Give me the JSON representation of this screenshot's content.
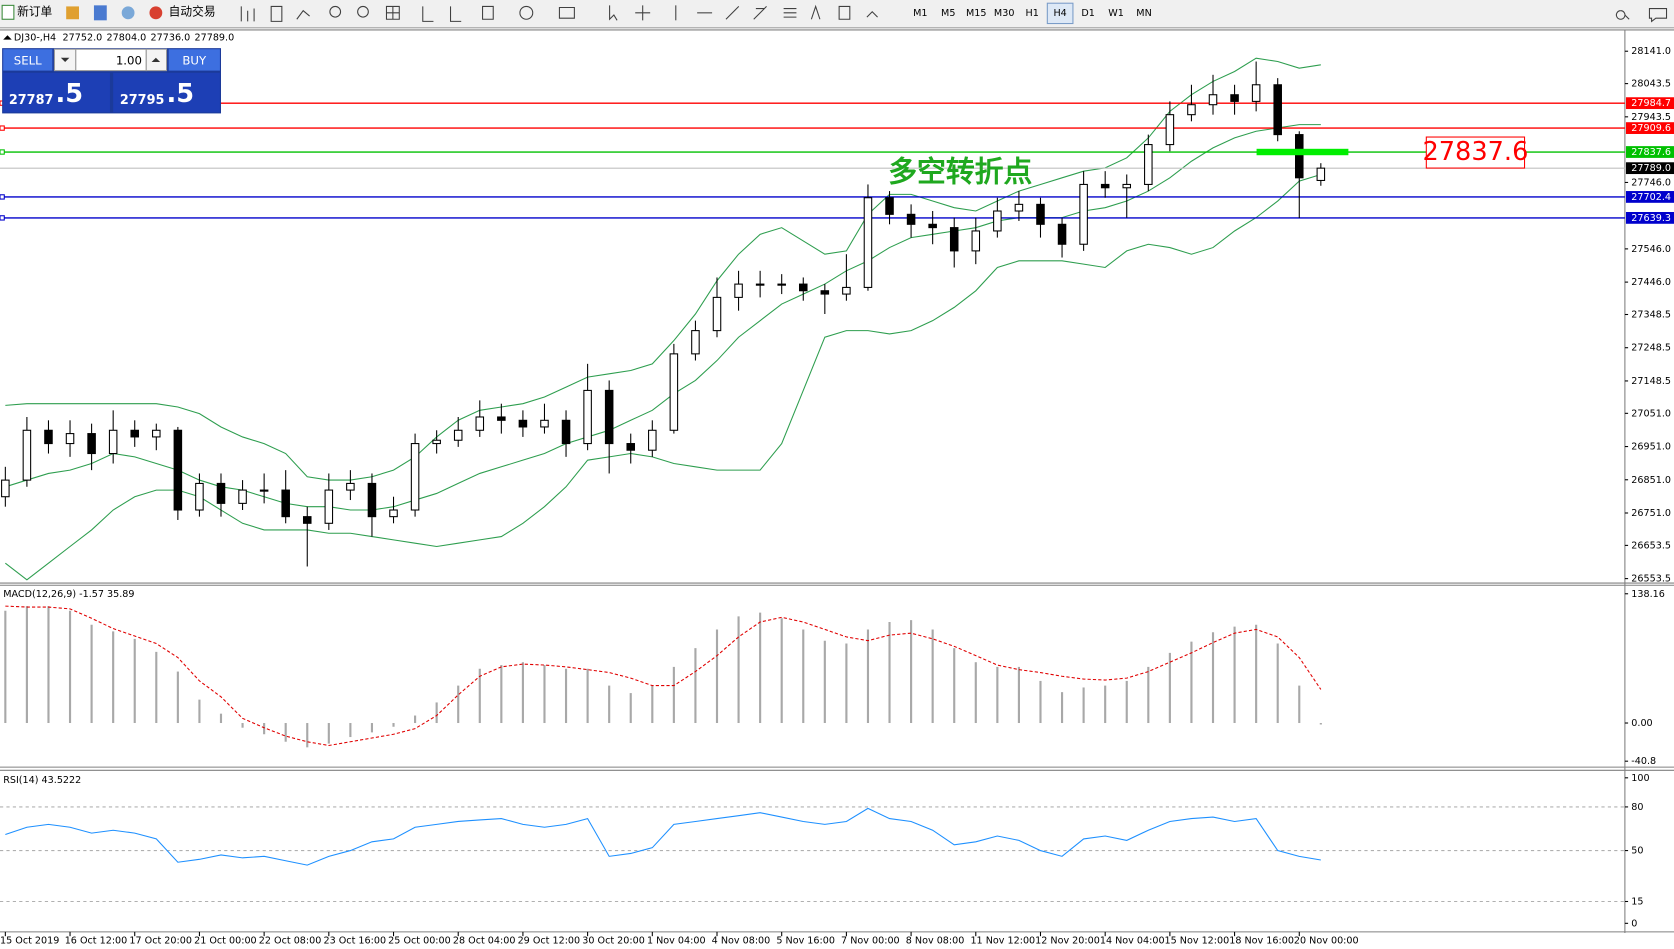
{
  "toolbar": {
    "new_order": "新订单",
    "auto_trading": "自动交易",
    "timeframes": [
      "M1",
      "M5",
      "M15",
      "M30",
      "H1",
      "H4",
      "D1",
      "W1",
      "MN"
    ],
    "active_timeframe": "H4"
  },
  "chart_header": {
    "symbol": "DJ30-,H4",
    "ohlc": [
      "27752.0",
      "27804.0",
      "27736.0",
      "27789.0"
    ]
  },
  "trade_panel": {
    "sell": "SELL",
    "buy": "BUY",
    "volume": "1.00",
    "sell_main": "27787",
    "sell_pips": ".5",
    "buy_main": "27795",
    "buy_pips": ".5"
  },
  "chart_data": [
    {
      "type": "candlestick",
      "x": [
        "15 Oct 2019",
        null,
        null,
        "16 Oct 12:00",
        null,
        null,
        "17 Oct 20:00",
        null,
        null,
        "21 Oct 00:00",
        null,
        null,
        "22 Oct 08:00",
        null,
        null,
        "23 Oct 16:00",
        null,
        null,
        "25 Oct 00:00",
        null,
        null,
        "28 Oct 04:00",
        null,
        null,
        "29 Oct 12:00",
        null,
        null,
        "30 Oct 20:00",
        null,
        null,
        "1 Nov 04:00",
        null,
        null,
        "4 Nov 08:00",
        null,
        null,
        "5 Nov 16:00",
        null,
        null,
        "7 Nov 00:00",
        null,
        null,
        "8 Nov 08:00",
        null,
        null,
        "11 Nov 12:00",
        null,
        null,
        "12 Nov 20:00",
        null,
        null,
        "14 Nov 04:00",
        null,
        null,
        "15 Nov 12:00",
        null,
        null,
        "18 Nov 16:00",
        null,
        null,
        "20 Nov 00:00",
        null
      ],
      "open": [
        26800,
        26850,
        27000,
        26960,
        26990,
        26930,
        27000,
        26980,
        27000,
        26760,
        26840,
        26780,
        26820,
        26820,
        26740,
        26720,
        26820,
        26840,
        26740,
        26760,
        26960,
        26970,
        27000,
        27040,
        27030,
        27010,
        27030,
        26960,
        27120,
        26960,
        26940,
        27000,
        27230,
        27300,
        27400,
        27440,
        27440,
        27440,
        27420,
        27410,
        27430,
        27700,
        27650,
        27620,
        27610,
        27540,
        27600,
        27660,
        27680,
        27620,
        27560,
        27740,
        27730,
        27740,
        27860,
        27950,
        27980,
        28010,
        27990,
        28040,
        27890,
        27752
      ],
      "high": [
        26890,
        27040,
        27030,
        27030,
        27020,
        27060,
        27030,
        27020,
        27010,
        26870,
        26870,
        26850,
        26870,
        26880,
        26770,
        26870,
        26880,
        26870,
        26800,
        26990,
        27000,
        27040,
        27090,
        27080,
        27060,
        27080,
        27060,
        27200,
        27150,
        26990,
        27030,
        27260,
        27330,
        27460,
        27480,
        27480,
        27470,
        27460,
        27440,
        27530,
        27740,
        27720,
        27680,
        27660,
        27640,
        27640,
        27700,
        27720,
        27700,
        27640,
        27780,
        27780,
        27770,
        27890,
        27990,
        28040,
        28070,
        28040,
        28110,
        28060,
        27900,
        27804
      ],
      "low": [
        26770,
        26830,
        26930,
        26920,
        26880,
        26900,
        26950,
        26940,
        26730,
        26740,
        26740,
        26760,
        26780,
        26720,
        26590,
        26700,
        26790,
        26680,
        26720,
        26740,
        26930,
        26950,
        26980,
        26990,
        26980,
        26990,
        26920,
        26940,
        26870,
        26900,
        26920,
        26990,
        27210,
        27280,
        27360,
        27400,
        27410,
        27390,
        27350,
        27390,
        27420,
        27620,
        27580,
        27560,
        27490,
        27500,
        27580,
        27630,
        27580,
        27520,
        27540,
        27700,
        27640,
        27720,
        27840,
        27930,
        27950,
        27950,
        27960,
        27870,
        27639,
        27736
      ],
      "close": [
        26850,
        27000,
        26960,
        26990,
        26930,
        27000,
        26980,
        27000,
        26760,
        26840,
        26780,
        26820,
        26820,
        26740,
        26720,
        26820,
        26840,
        26740,
        26760,
        26960,
        26970,
        27000,
        27040,
        27030,
        27010,
        27030,
        26960,
        27120,
        26960,
        26940,
        27000,
        27230,
        27300,
        27400,
        27440,
        27440,
        27440,
        27420,
        27410,
        27430,
        27700,
        27650,
        27620,
        27610,
        27540,
        27600,
        27660,
        27680,
        27620,
        27560,
        27740,
        27730,
        27740,
        27860,
        27950,
        27980,
        28010,
        27990,
        28040,
        27890,
        27760,
        27789
      ],
      "bollinger": {
        "color": "#2e9e4f",
        "upper": [
          27075,
          27080,
          27080,
          27080,
          27080,
          27080,
          27080,
          27080,
          27070,
          27050,
          27010,
          26980,
          26960,
          26930,
          26860,
          26850,
          26850,
          26860,
          26880,
          26920,
          26980,
          27030,
          27060,
          27070,
          27080,
          27100,
          27130,
          27160,
          27170,
          27180,
          27200,
          27270,
          27350,
          27450,
          27530,
          27590,
          27610,
          27570,
          27530,
          27540,
          27650,
          27710,
          27710,
          27690,
          27670,
          27660,
          27690,
          27720,
          27740,
          27760,
          27780,
          27790,
          27820,
          27880,
          27960,
          28010,
          28050,
          28080,
          28120,
          28110,
          28090,
          28100
        ],
        "middle": [
          26830,
          26850,
          26870,
          26880,
          26900,
          26930,
          26920,
          26900,
          26880,
          26850,
          26830,
          26820,
          26800,
          26780,
          26770,
          26770,
          26760,
          26760,
          26770,
          26790,
          26810,
          26840,
          26870,
          26890,
          26910,
          26930,
          26960,
          26980,
          27000,
          27030,
          27060,
          27110,
          27150,
          27210,
          27280,
          27330,
          27380,
          27410,
          27440,
          27480,
          27510,
          27550,
          27580,
          27590,
          27600,
          27610,
          27630,
          27640,
          27640,
          27640,
          27660,
          27670,
          27690,
          27720,
          27760,
          27810,
          27850,
          27880,
          27900,
          27910,
          27920,
          27920
        ],
        "lower": [
          26600,
          26550,
          26600,
          26650,
          26700,
          26760,
          26800,
          26820,
          26820,
          26800,
          26760,
          26720,
          26700,
          26700,
          26700,
          26690,
          26690,
          26680,
          26670,
          26660,
          26650,
          26660,
          26670,
          26680,
          26720,
          26770,
          26830,
          26910,
          26920,
          26930,
          26920,
          26900,
          26890,
          26880,
          26880,
          26880,
          26960,
          27120,
          27280,
          27300,
          27300,
          27290,
          27300,
          27330,
          27370,
          27420,
          27490,
          27510,
          27510,
          27510,
          27500,
          27490,
          27540,
          27560,
          27550,
          27530,
          27550,
          27600,
          27640,
          27690,
          27750,
          27770
        ]
      },
      "ylim": [
        26540,
        28205
      ],
      "yticks": [
        {
          "value": 28141,
          "label": "28141.0"
        },
        28043.5,
        27943.5,
        {
          "value": 27746,
          "label": "27746.0"
        },
        {
          "value": 27546,
          "label": "27546.0"
        },
        {
          "value": 27446,
          "label": "27446.0"
        },
        27348.5,
        27248.5,
        27148.5,
        {
          "value": 27051,
          "label": "27051.0"
        },
        {
          "value": 26951,
          "label": "26951.0"
        },
        {
          "value": 26851,
          "label": "26851.0"
        },
        {
          "value": 26751,
          "label": "26751.0"
        },
        26653.5,
        26553.5
      ],
      "levels": [
        {
          "value": 27984.7,
          "color": "#ff0000"
        },
        {
          "value": 27909.6,
          "color": "#ff0000"
        },
        {
          "value": 27837.6,
          "color": "#00c000"
        },
        {
          "value": 27789,
          "label": "27789.0",
          "color": "#000000"
        },
        {
          "value": 27702.4,
          "color": "#0000cc"
        },
        {
          "value": 27639.3,
          "color": "#0000cc"
        }
      ],
      "annotation": {
        "text": "多空转折点",
        "color": "#1fa81f"
      }
    },
    {
      "type": "macd",
      "title": "MACD(12,26,9) -1.57 35.89",
      "histogram": [
        120,
        125,
        125,
        120,
        105,
        98,
        90,
        76,
        55,
        25,
        10,
        -5,
        -12,
        -20,
        -26,
        -22,
        -15,
        -10,
        -4,
        8,
        22,
        40,
        58,
        62,
        65,
        62,
        58,
        58,
        40,
        32,
        40,
        60,
        80,
        100,
        114,
        118,
        112,
        100,
        88,
        85,
        100,
        108,
        110,
        100,
        80,
        65,
        60,
        60,
        45,
        33,
        38,
        40,
        45,
        60,
        75,
        87,
        97,
        103,
        105,
        85,
        40,
        -1.57
      ],
      "signal": [
        125,
        124,
        124,
        122,
        112,
        101,
        93,
        85,
        70,
        45,
        28,
        5,
        -5,
        -14,
        -20,
        -24,
        -20,
        -16,
        -12,
        -6,
        8,
        30,
        50,
        60,
        63,
        62,
        60,
        57,
        54,
        48,
        40,
        40,
        55,
        72,
        92,
        108,
        113,
        108,
        100,
        92,
        88,
        94,
        96,
        90,
        82,
        72,
        62,
        57,
        54,
        50,
        47,
        46,
        48,
        55,
        65,
        75,
        86,
        96,
        100,
        92,
        70,
        35.89
      ],
      "ylim": [
        -46,
        145
      ],
      "yticks": [
        138.16,
        {
          "value": 0,
          "label": "0.00"
        },
        -40.8
      ]
    },
    {
      "type": "rsi",
      "title": "RSI(14) 43.5222",
      "values": [
        61,
        66,
        68,
        66,
        62,
        64,
        62,
        58,
        42,
        44,
        47,
        45,
        46,
        43,
        40,
        46,
        50,
        56,
        58,
        66,
        68,
        70,
        71,
        72,
        68,
        66,
        68,
        72,
        46,
        48,
        52,
        68,
        70,
        72,
        74,
        76,
        73,
        70,
        68,
        70,
        79,
        72,
        70,
        64,
        54,
        56,
        60,
        57,
        50,
        46,
        58,
        60,
        57,
        64,
        70,
        72,
        73,
        70,
        72,
        50,
        46,
        43.5222
      ],
      "color": "#1e90ff",
      "ylim": [
        0,
        100
      ],
      "yticks": [
        100,
        80,
        50,
        15,
        0
      ]
    }
  ]
}
